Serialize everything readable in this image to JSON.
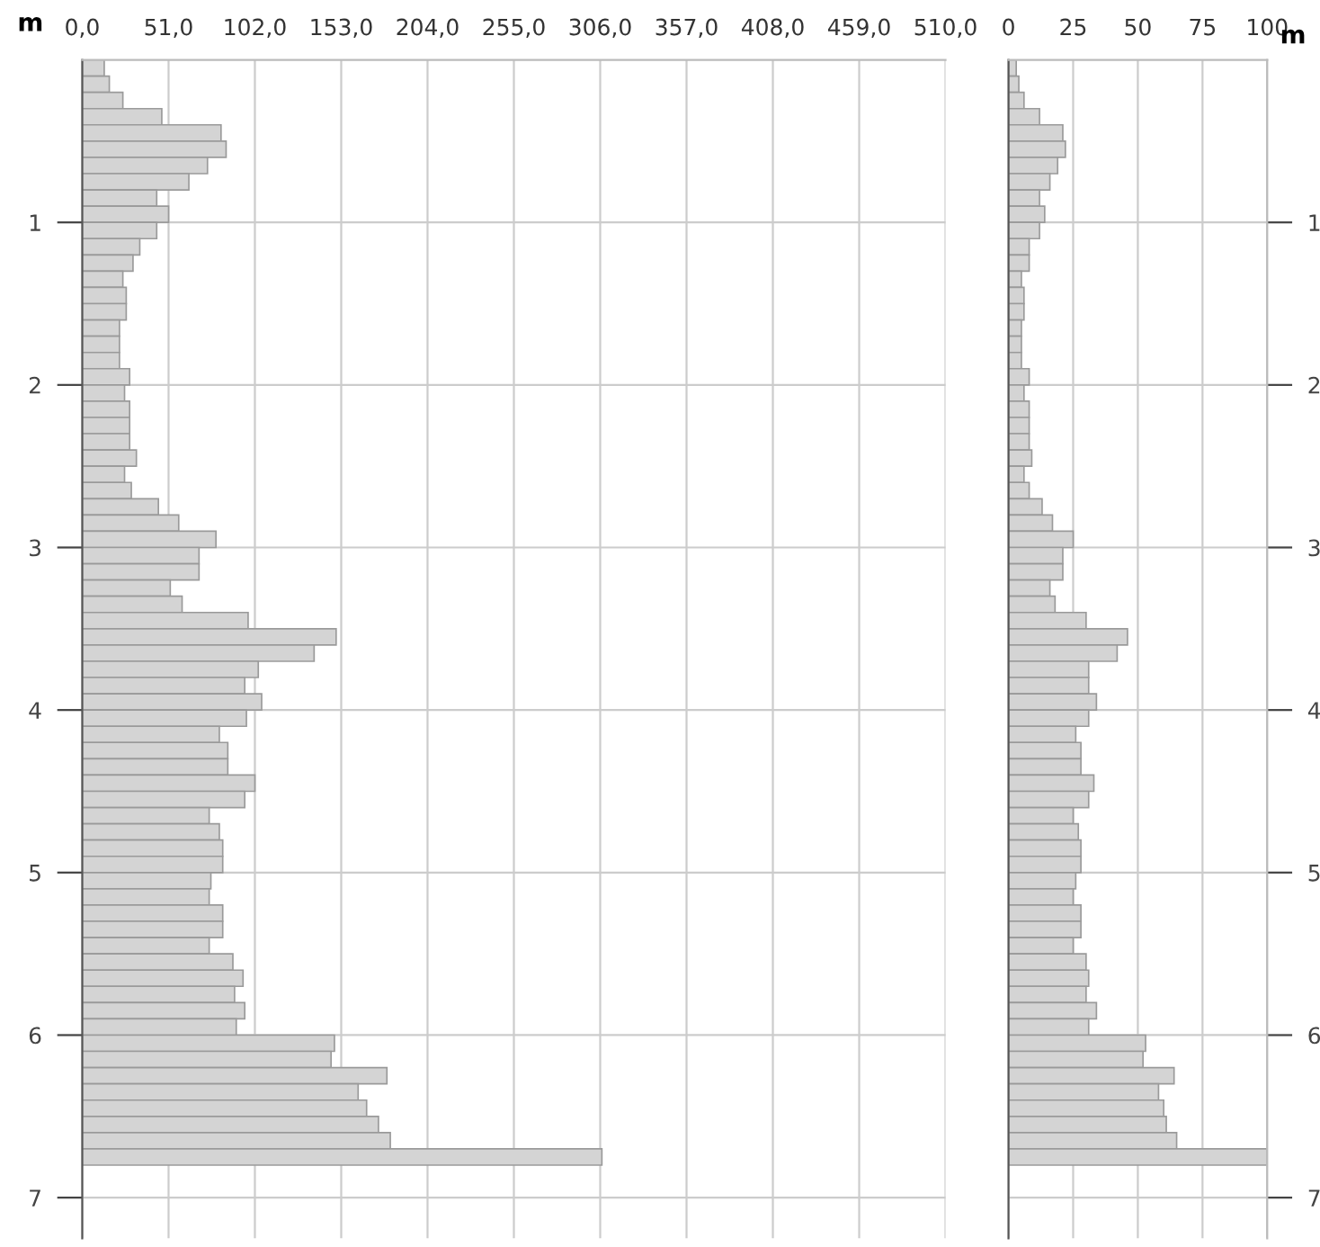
{
  "chart_data": [
    {
      "type": "bar",
      "orientation": "horizontal",
      "ylabel": "m",
      "color": "#d4d4d4",
      "x": [
        0.05,
        0.15,
        0.25,
        0.35,
        0.45,
        0.55,
        0.65,
        0.75,
        0.85,
        0.95,
        1.05,
        1.15,
        1.25,
        1.35,
        1.45,
        1.55,
        1.65,
        1.75,
        1.85,
        1.95,
        2.05,
        2.15,
        2.25,
        2.35,
        2.45,
        2.55,
        2.65,
        2.75,
        2.85,
        2.95,
        3.05,
        3.15,
        3.25,
        3.35,
        3.45,
        3.55,
        3.65,
        3.75,
        3.85,
        3.95,
        4.05,
        4.15,
        4.25,
        4.35,
        4.45,
        4.55,
        4.65,
        4.75,
        4.85,
        4.95,
        5.05,
        5.15,
        5.25,
        5.35,
        5.45,
        5.55,
        5.65,
        5.75,
        5.85,
        5.95,
        6.05,
        6.15,
        6.25,
        6.35,
        6.45,
        6.55,
        6.65,
        6.75
      ],
      "values": [
        13,
        16,
        24,
        47,
        82,
        85,
        74,
        63,
        44,
        51,
        44,
        34,
        30,
        24,
        26,
        26,
        22,
        22,
        22,
        28,
        25,
        28,
        28,
        28,
        32,
        25,
        29,
        45,
        57,
        79,
        69,
        69,
        52,
        59,
        98,
        150,
        137,
        104,
        96,
        106,
        97,
        81,
        86,
        86,
        102,
        96,
        75,
        81,
        83,
        83,
        76,
        75,
        83,
        83,
        75,
        89,
        95,
        90,
        96,
        91,
        149,
        147,
        180,
        163,
        168,
        175,
        182,
        307
      ],
      "xlim": [
        0,
        510
      ],
      "xticks": [
        {
          "value": 0,
          "label": "0,0"
        },
        {
          "value": 51,
          "label": "51,0"
        },
        {
          "value": 102,
          "label": "102,0"
        },
        {
          "value": 153,
          "label": "153,0"
        },
        {
          "value": 204,
          "label": "204,0"
        },
        {
          "value": 255,
          "label": "255,0"
        },
        {
          "value": 306,
          "label": "306,0"
        },
        {
          "value": 357,
          "label": "357,0"
        },
        {
          "value": 408,
          "label": "408,0"
        },
        {
          "value": 459,
          "label": "459,0"
        },
        {
          "value": 510,
          "label": "510,0"
        }
      ],
      "ylim": [
        7.25,
        0
      ],
      "yticks": [
        1,
        2,
        3,
        4,
        5,
        6,
        7
      ],
      "grid": true
    },
    {
      "type": "bar",
      "orientation": "horizontal",
      "ylabel": "m",
      "color": "#d4d4d4",
      "x": [
        0.05,
        0.15,
        0.25,
        0.35,
        0.45,
        0.55,
        0.65,
        0.75,
        0.85,
        0.95,
        1.05,
        1.15,
        1.25,
        1.35,
        1.45,
        1.55,
        1.65,
        1.75,
        1.85,
        1.95,
        2.05,
        2.15,
        2.25,
        2.35,
        2.45,
        2.55,
        2.65,
        2.75,
        2.85,
        2.95,
        3.05,
        3.15,
        3.25,
        3.35,
        3.45,
        3.55,
        3.65,
        3.75,
        3.85,
        3.95,
        4.05,
        4.15,
        4.25,
        4.35,
        4.45,
        4.55,
        4.65,
        4.75,
        4.85,
        4.95,
        5.05,
        5.15,
        5.25,
        5.35,
        5.45,
        5.55,
        5.65,
        5.75,
        5.85,
        5.95,
        6.05,
        6.15,
        6.25,
        6.35,
        6.45,
        6.55,
        6.65,
        6.75
      ],
      "values": [
        3,
        4,
        6,
        12,
        21,
        22,
        19,
        16,
        12,
        14,
        12,
        8,
        8,
        5,
        6,
        6,
        5,
        5,
        5,
        8,
        6,
        8,
        8,
        8,
        9,
        6,
        8,
        13,
        17,
        25,
        21,
        21,
        16,
        18,
        30,
        46,
        42,
        31,
        31,
        34,
        31,
        26,
        28,
        28,
        33,
        31,
        25,
        27,
        28,
        28,
        26,
        25,
        28,
        28,
        25,
        30,
        31,
        30,
        34,
        31,
        53,
        52,
        64,
        58,
        60,
        61,
        65,
        100
      ],
      "xlim": [
        0,
        100
      ],
      "xticks": [
        0,
        25,
        50,
        75,
        100
      ],
      "ylim": [
        7.25,
        0
      ],
      "yticks": [
        1,
        2,
        3,
        4,
        5,
        6,
        7
      ],
      "grid": true
    }
  ]
}
